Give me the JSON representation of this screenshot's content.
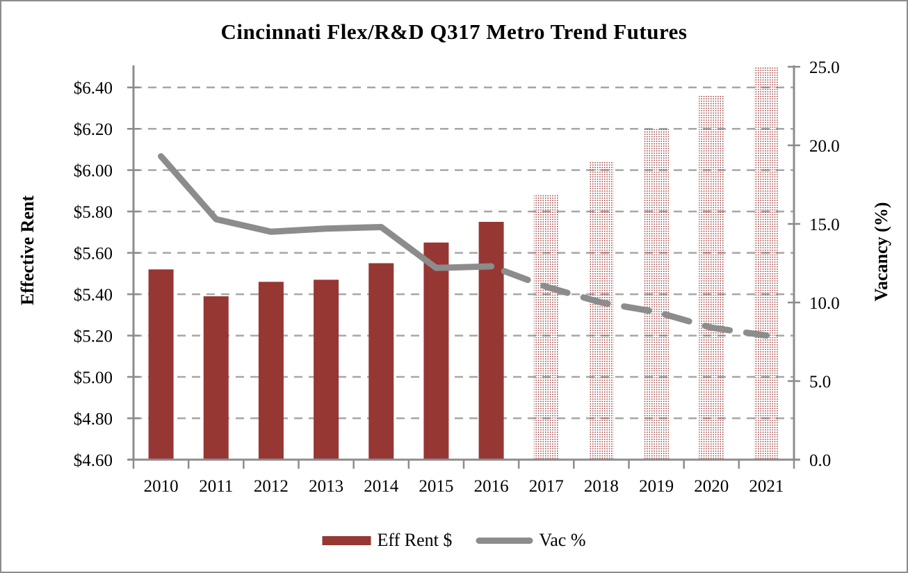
{
  "colors": {
    "bar": "#963734",
    "line": "#8C8C8C",
    "gridline": "#A6A6A6",
    "axis": "#8C8C8C",
    "border": "#8C8C8C",
    "text": "#000000"
  },
  "chart_data": {
    "type": "combo-bar-line",
    "title": "Cincinnati Flex/R&D Q317 Metro Trend Futures",
    "categories": [
      "2010",
      "2011",
      "2012",
      "2013",
      "2014",
      "2015",
      "2016",
      "2017",
      "2018",
      "2019",
      "2020",
      "2021"
    ],
    "actual_count": 7,
    "series": [
      {
        "name": "Eff Rent $",
        "type": "bar",
        "axis": "left",
        "values": [
          5.52,
          5.39,
          5.46,
          5.47,
          5.55,
          5.65,
          5.75,
          5.88,
          6.04,
          6.2,
          6.36,
          6.5
        ],
        "style_note": "solid fill 2010-2016, dotted-grid pattern fill for 2017-2021 forecast"
      },
      {
        "name": "Vac %",
        "type": "line",
        "axis": "right",
        "values": [
          19.3,
          15.3,
          14.5,
          14.7,
          14.8,
          12.2,
          12.3,
          11.0,
          10.0,
          9.4,
          8.4,
          7.9
        ],
        "style_note": "solid line 2010-2016, dashed line for 2017-2021 forecast"
      }
    ],
    "left_axis": {
      "label": "Effective Rent",
      "min": 4.6,
      "max": 6.5,
      "tick_labels": [
        "$6.40",
        "$6.20",
        "$6.00",
        "$5.80",
        "$5.60",
        "$5.40",
        "$5.20",
        "$5.00",
        "$4.80",
        "$4.60"
      ],
      "tick_values": [
        6.4,
        6.2,
        6.0,
        5.8,
        5.6,
        5.4,
        5.2,
        5.0,
        4.8,
        4.6
      ]
    },
    "right_axis": {
      "label": "Vacancy (%)",
      "min": 0,
      "max": 25,
      "tick_labels": [
        "25.0",
        "20.0",
        "15.0",
        "10.0",
        "5.0",
        "0.0"
      ],
      "tick_values": [
        25,
        20,
        15,
        10,
        5,
        0
      ]
    },
    "gridlines": "dashed horizontal at each left-axis tick",
    "legend_position": "bottom-center"
  }
}
